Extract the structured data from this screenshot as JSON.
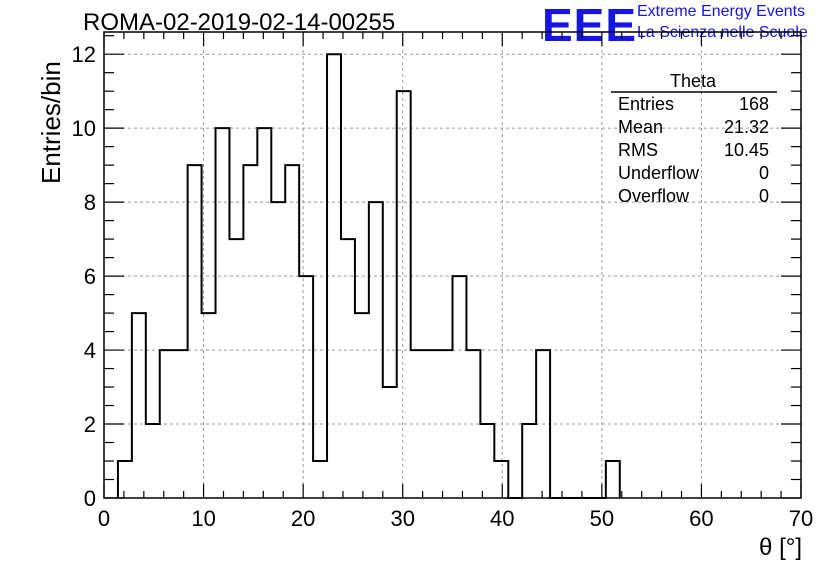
{
  "header": {
    "title": "ROMA-02-2019-02-14-00255",
    "logo_text": "EEE",
    "brand_line1": "Extreme Energy Events",
    "brand_line2": "La Scienza nelle Scuole",
    "brand_color": "#1515e6"
  },
  "stats": {
    "title": "Theta",
    "rows": [
      {
        "label": "Entries",
        "value": "168"
      },
      {
        "label": "Mean",
        "value": "21.32"
      },
      {
        "label": "RMS",
        "value": "10.45"
      },
      {
        "label": "Underflow",
        "value": "0"
      },
      {
        "label": "Overflow",
        "value": "0"
      }
    ]
  },
  "chart_data": {
    "type": "bar",
    "style": "step-histogram",
    "xlabel": "θ [°]",
    "ylabel": "Entries/bin",
    "xlim": [
      0,
      70
    ],
    "ylim": [
      0,
      12.6
    ],
    "bin_width": 1.4,
    "x_ticks": [
      0,
      10,
      20,
      30,
      40,
      50,
      60,
      70
    ],
    "y_ticks": [
      0,
      2,
      4,
      6,
      8,
      10,
      12
    ],
    "grid": true,
    "legend": "top-right",
    "bin_edges_start": 1.4,
    "values": [
      1,
      5,
      2,
      4,
      4,
      9,
      5,
      10,
      7,
      9,
      10,
      8,
      9,
      6,
      1,
      12,
      7,
      5,
      8,
      3,
      11,
      4,
      4,
      4,
      6,
      4,
      2,
      1,
      0,
      2,
      4,
      0,
      0,
      0,
      0,
      1
    ]
  }
}
